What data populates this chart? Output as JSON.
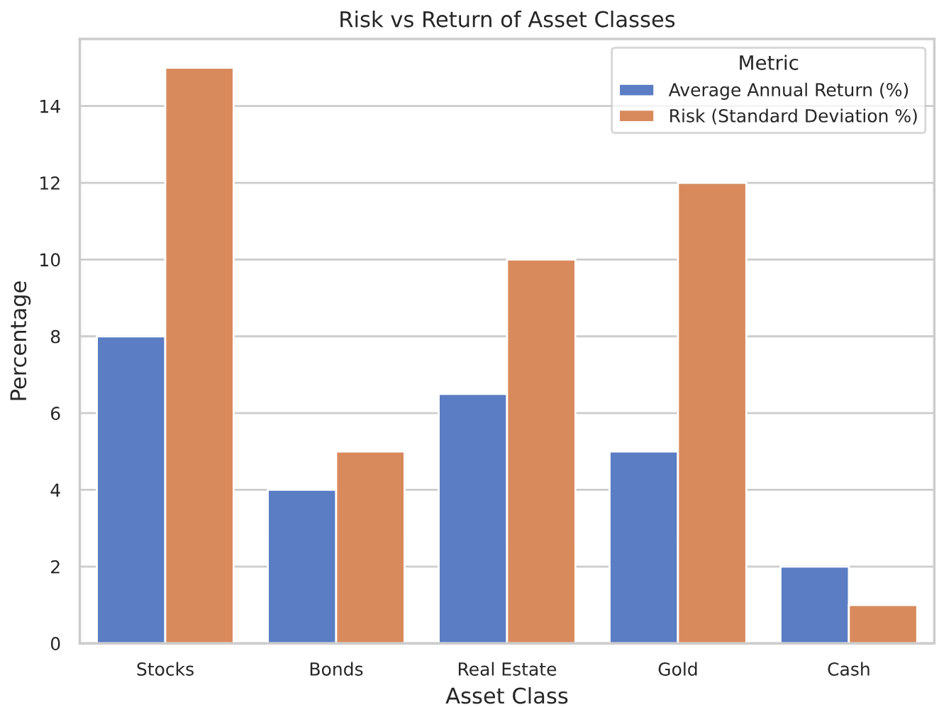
{
  "chart_data": {
    "type": "bar",
    "title": "Risk vs Return of Asset Classes",
    "xlabel": "Asset Class",
    "ylabel": "Percentage",
    "legend_title": "Metric",
    "categories": [
      "Stocks",
      "Bonds",
      "Real Estate",
      "Gold",
      "Cash"
    ],
    "series": [
      {
        "name": "Average Annual Return (%)",
        "color": "#5a7dc4",
        "values": [
          8,
          4,
          6.5,
          5,
          2
        ]
      },
      {
        "name": "Risk (Standard Deviation %)",
        "color": "#d98a5c",
        "values": [
          15,
          5,
          10,
          12,
          1
        ]
      }
    ],
    "ylim": [
      0,
      15.75
    ],
    "yticks": [
      0,
      2,
      4,
      6,
      8,
      10,
      12,
      14
    ],
    "grid": "y",
    "legend": "top right"
  }
}
